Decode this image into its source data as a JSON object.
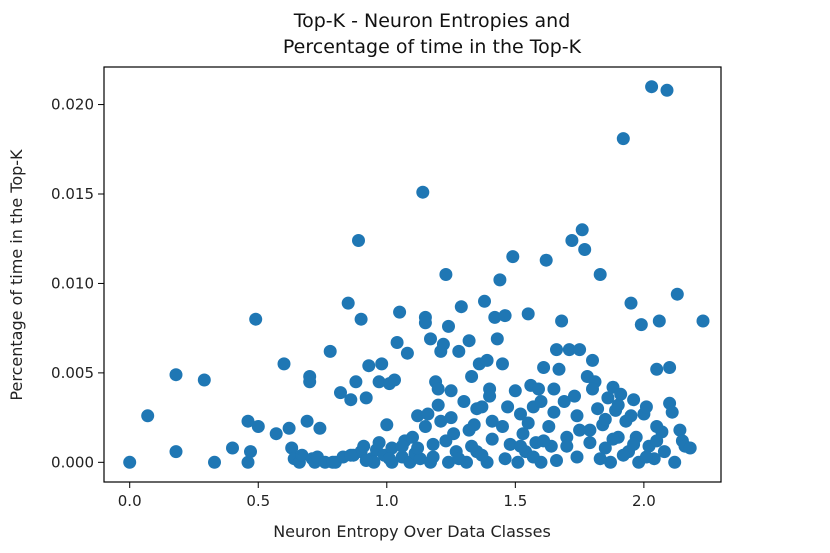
{
  "chart_data": {
    "type": "scatter",
    "title_line1": "Top-K - Neuron Entropies and",
    "title_line2": "Percentage of time in the Top-K",
    "xlabel": "Neuron Entropy Over Data Classes",
    "ylabel": "Percentage of time in the Top-K",
    "xlim": [
      -0.1,
      2.3
    ],
    "ylim": [
      -0.0011,
      0.0221
    ],
    "xticks": [
      0.0,
      0.5,
      1.0,
      1.5,
      2.0
    ],
    "xtick_labels": [
      "0.0",
      "0.5",
      "1.0",
      "1.5",
      "2.0"
    ],
    "yticks": [
      0.0,
      0.005,
      0.01,
      0.015,
      0.02
    ],
    "ytick_labels": [
      "0.000",
      "0.005",
      "0.010",
      "0.015",
      "0.020"
    ],
    "grid": false,
    "marker_color": "#1f77b4",
    "points": [
      [
        0.0,
        0.0
      ],
      [
        0.07,
        0.0026
      ],
      [
        0.18,
        0.0049
      ],
      [
        0.18,
        0.0006
      ],
      [
        0.29,
        0.0046
      ],
      [
        0.33,
        0.0
      ],
      [
        0.4,
        0.0008
      ],
      [
        0.46,
        0.0
      ],
      [
        0.46,
        0.0023
      ],
      [
        0.47,
        0.0006
      ],
      [
        0.49,
        0.008
      ],
      [
        0.5,
        0.002
      ],
      [
        0.57,
        0.0016
      ],
      [
        0.6,
        0.0055
      ],
      [
        0.62,
        0.0019
      ],
      [
        0.63,
        0.0008
      ],
      [
        0.64,
        0.0002
      ],
      [
        0.66,
        0.0
      ],
      [
        0.67,
        0.0004
      ],
      [
        0.69,
        0.0023
      ],
      [
        0.7,
        0.0048
      ],
      [
        0.7,
        0.0045
      ],
      [
        0.71,
        0.0002
      ],
      [
        0.72,
        0.0
      ],
      [
        0.73,
        0.0003
      ],
      [
        0.74,
        0.0019
      ],
      [
        0.76,
        0.0
      ],
      [
        0.78,
        0.0062
      ],
      [
        0.79,
        0.0
      ],
      [
        0.8,
        0.0
      ],
      [
        0.82,
        0.0039
      ],
      [
        0.83,
        0.0003
      ],
      [
        0.85,
        0.0089
      ],
      [
        0.86,
        0.0035
      ],
      [
        0.87,
        0.0004
      ],
      [
        0.88,
        0.0045
      ],
      [
        0.89,
        0.0124
      ],
      [
        0.9,
        0.008
      ],
      [
        0.9,
        0.0006
      ],
      [
        0.91,
        0.0009
      ],
      [
        0.92,
        0.0036
      ],
      [
        0.93,
        0.0054
      ],
      [
        0.94,
        0.0002
      ],
      [
        0.95,
        0.0
      ],
      [
        0.96,
        0.0007
      ],
      [
        0.97,
        0.0011
      ],
      [
        0.97,
        0.0045
      ],
      [
        0.98,
        0.0055
      ],
      [
        0.99,
        0.0004
      ],
      [
        1.0,
        0.0021
      ],
      [
        1.01,
        0.0044
      ],
      [
        1.02,
        0.0008
      ],
      [
        1.02,
        0.0
      ],
      [
        1.03,
        0.0046
      ],
      [
        1.04,
        0.0067
      ],
      [
        1.05,
        0.0084
      ],
      [
        1.06,
        0.0003
      ],
      [
        1.07,
        0.0012
      ],
      [
        1.08,
        0.0061
      ],
      [
        1.09,
        0.0
      ],
      [
        1.1,
        0.0014
      ],
      [
        1.11,
        0.0005
      ],
      [
        1.12,
        0.0026
      ],
      [
        1.13,
        0.0002
      ],
      [
        1.14,
        0.0151
      ],
      [
        1.15,
        0.0081
      ],
      [
        1.15,
        0.0078
      ],
      [
        1.16,
        0.0027
      ],
      [
        1.17,
        0.0
      ],
      [
        1.17,
        0.0069
      ],
      [
        1.18,
        0.001
      ],
      [
        1.19,
        0.0045
      ],
      [
        1.2,
        0.0032
      ],
      [
        1.21,
        0.0023
      ],
      [
        1.21,
        0.0062
      ],
      [
        1.22,
        0.0066
      ],
      [
        1.23,
        0.0105
      ],
      [
        1.24,
        0.0
      ],
      [
        1.24,
        0.0076
      ],
      [
        1.25,
        0.004
      ],
      [
        1.26,
        0.0016
      ],
      [
        1.27,
        0.0006
      ],
      [
        1.28,
        0.0062
      ],
      [
        1.29,
        0.0087
      ],
      [
        1.3,
        0.0034
      ],
      [
        1.31,
        0.0
      ],
      [
        1.32,
        0.0018
      ],
      [
        1.32,
        0.0068
      ],
      [
        1.33,
        0.0048
      ],
      [
        1.34,
        0.0021
      ],
      [
        1.35,
        0.0006
      ],
      [
        1.36,
        0.0055
      ],
      [
        1.37,
        0.0031
      ],
      [
        1.38,
        0.009
      ],
      [
        1.39,
        0.0
      ],
      [
        1.39,
        0.0057
      ],
      [
        1.4,
        0.0041
      ],
      [
        1.41,
        0.0023
      ],
      [
        1.42,
        0.0081
      ],
      [
        1.43,
        0.0069
      ],
      [
        1.44,
        0.0102
      ],
      [
        1.45,
        0.0055
      ],
      [
        1.46,
        0.0082
      ],
      [
        1.47,
        0.0031
      ],
      [
        1.48,
        0.001
      ],
      [
        1.49,
        0.0115
      ],
      [
        1.5,
        0.004
      ],
      [
        1.51,
        0.0
      ],
      [
        1.52,
        0.0027
      ],
      [
        1.53,
        0.0016
      ],
      [
        1.54,
        0.0006
      ],
      [
        1.55,
        0.0083
      ],
      [
        1.56,
        0.0043
      ],
      [
        1.57,
        0.0031
      ],
      [
        1.58,
        0.0011
      ],
      [
        1.59,
        0.0041
      ],
      [
        1.6,
        0.0
      ],
      [
        1.61,
        0.0053
      ],
      [
        1.62,
        0.0113
      ],
      [
        1.63,
        0.002
      ],
      [
        1.64,
        0.0009
      ],
      [
        1.65,
        0.0041
      ],
      [
        1.66,
        0.0063
      ],
      [
        1.67,
        0.0052
      ],
      [
        1.68,
        0.0079
      ],
      [
        1.69,
        0.0034
      ],
      [
        1.7,
        0.0014
      ],
      [
        1.71,
        0.0063
      ],
      [
        1.72,
        0.0124
      ],
      [
        1.73,
        0.0037
      ],
      [
        1.74,
        0.0026
      ],
      [
        1.75,
        0.0063
      ],
      [
        1.76,
        0.013
      ],
      [
        1.77,
        0.0119
      ],
      [
        1.78,
        0.0048
      ],
      [
        1.79,
        0.0018
      ],
      [
        1.8,
        0.0057
      ],
      [
        1.81,
        0.0045
      ],
      [
        1.82,
        0.003
      ],
      [
        1.83,
        0.0105
      ],
      [
        1.84,
        0.0021
      ],
      [
        1.85,
        0.0008
      ],
      [
        1.86,
        0.0036
      ],
      [
        1.87,
        0.0
      ],
      [
        1.88,
        0.0042
      ],
      [
        1.89,
        0.0029
      ],
      [
        1.9,
        0.0014
      ],
      [
        1.91,
        0.0038
      ],
      [
        1.92,
        0.0181
      ],
      [
        1.93,
        0.0023
      ],
      [
        1.94,
        0.0006
      ],
      [
        1.95,
        0.0089
      ],
      [
        1.96,
        0.0035
      ],
      [
        1.97,
        0.0014
      ],
      [
        1.98,
        0.0
      ],
      [
        1.99,
        0.0077
      ],
      [
        2.0,
        0.0027
      ],
      [
        2.01,
        0.0031
      ],
      [
        2.02,
        0.0009
      ],
      [
        2.03,
        0.021
      ],
      [
        2.04,
        0.0002
      ],
      [
        2.05,
        0.0052
      ],
      [
        2.06,
        0.0079
      ],
      [
        2.07,
        0.0017
      ],
      [
        2.08,
        0.0006
      ],
      [
        2.09,
        0.0208
      ],
      [
        2.1,
        0.0053
      ],
      [
        2.1,
        0.0033
      ],
      [
        2.11,
        0.0028
      ],
      [
        2.12,
        0.0
      ],
      [
        2.13,
        0.0094
      ],
      [
        2.14,
        0.0018
      ],
      [
        2.15,
        0.0012
      ],
      [
        2.16,
        0.0009
      ],
      [
        2.18,
        0.0008
      ],
      [
        2.23,
        0.0079
      ],
      [
        0.86,
        0.0004
      ],
      [
        0.92,
        0.0001
      ],
      [
        1.01,
        0.0002
      ],
      [
        1.06,
        0.0009
      ],
      [
        1.12,
        0.0008
      ],
      [
        1.18,
        0.0003
      ],
      [
        1.23,
        0.0012
      ],
      [
        1.28,
        0.0002
      ],
      [
        1.33,
        0.0009
      ],
      [
        1.37,
        0.0004
      ],
      [
        1.41,
        0.0013
      ],
      [
        1.46,
        0.0002
      ],
      [
        1.52,
        0.0009
      ],
      [
        1.57,
        0.0003
      ],
      [
        1.61,
        0.0012
      ],
      [
        1.66,
        0.0001
      ],
      [
        1.7,
        0.0009
      ],
      [
        1.74,
        0.0003
      ],
      [
        1.79,
        0.0011
      ],
      [
        1.83,
        0.0002
      ],
      [
        1.88,
        0.0013
      ],
      [
        1.92,
        0.0004
      ],
      [
        1.96,
        0.001
      ],
      [
        2.01,
        0.0003
      ],
      [
        2.05,
        0.0012
      ],
      [
        1.15,
        0.002
      ],
      [
        1.25,
        0.0025
      ],
      [
        1.35,
        0.003
      ],
      [
        1.45,
        0.002
      ],
      [
        1.55,
        0.0022
      ],
      [
        1.65,
        0.0028
      ],
      [
        1.75,
        0.0018
      ],
      [
        1.85,
        0.0024
      ],
      [
        1.95,
        0.0026
      ],
      [
        2.05,
        0.002
      ],
      [
        1.2,
        0.0041
      ],
      [
        1.4,
        0.0037
      ],
      [
        1.6,
        0.0034
      ],
      [
        1.8,
        0.0041
      ],
      [
        1.9,
        0.0032
      ]
    ]
  }
}
